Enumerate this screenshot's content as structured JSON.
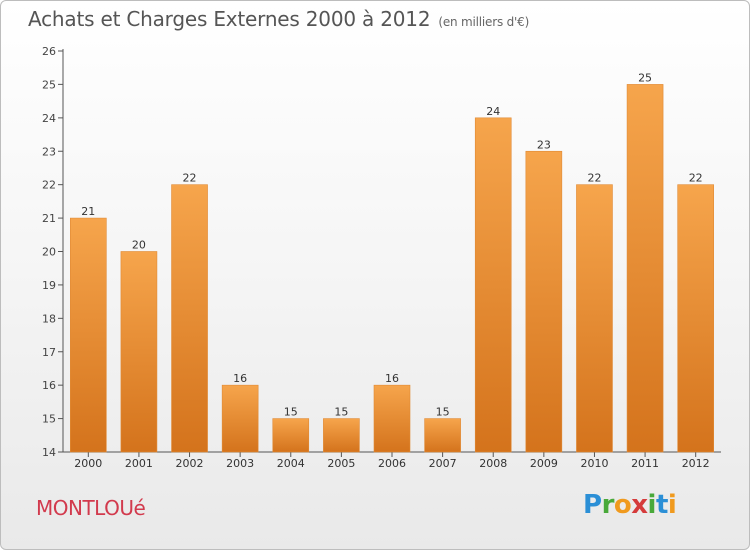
{
  "header": {
    "title": "Achats et Charges Externes 2000 à 2012",
    "subtitle": "(en milliers d'€)"
  },
  "footer": {
    "town": "MONTLOUé",
    "logo_text": "Proxiti"
  },
  "colors": {
    "bar_top": "#f6a54c",
    "bar_bottom": "#d4731c",
    "town_text": "#d23a4d"
  },
  "chart_data": {
    "type": "bar",
    "categories": [
      "2000",
      "2001",
      "2002",
      "2003",
      "2004",
      "2005",
      "2006",
      "2007",
      "2008",
      "2009",
      "2010",
      "2011",
      "2012"
    ],
    "values": [
      21,
      20,
      22,
      16,
      15,
      15,
      16,
      15,
      24,
      23,
      22,
      25,
      22
    ],
    "ylim": [
      14,
      26
    ],
    "yticks": [
      14,
      15,
      16,
      17,
      18,
      19,
      20,
      21,
      22,
      23,
      24,
      25,
      26
    ],
    "grid": false,
    "data_labels": true
  }
}
